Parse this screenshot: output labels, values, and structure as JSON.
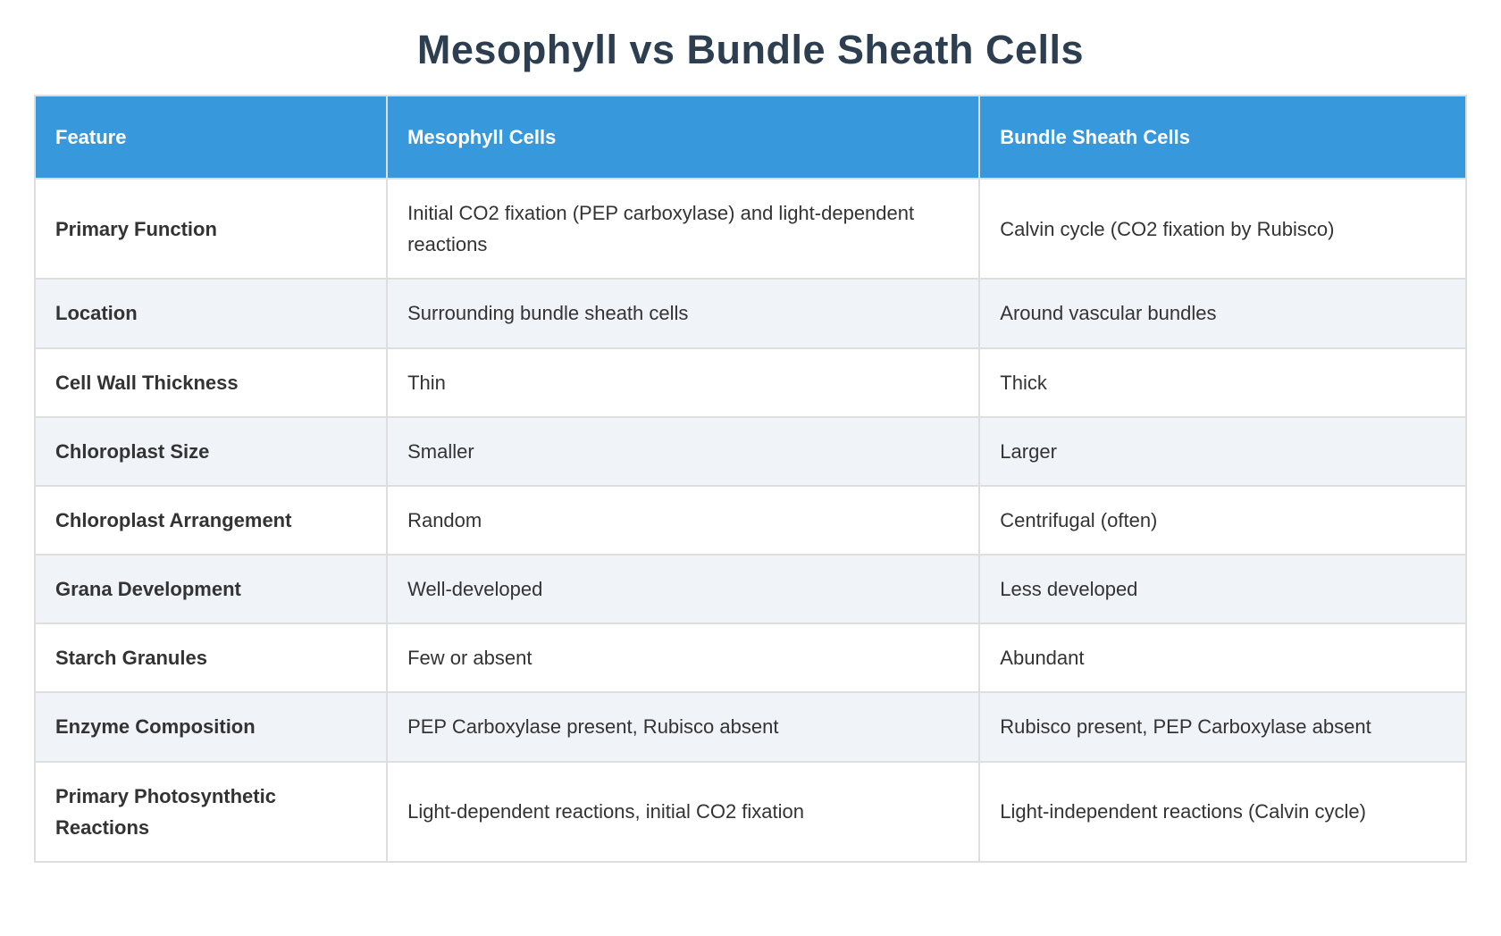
{
  "page": {
    "title": "Mesophyll vs Bundle Sheath Cells"
  },
  "colors": {
    "header_background": "#3798db",
    "header_text": "#ffffff",
    "alt_row_background": "#f0f3f8",
    "border": "#dedede",
    "title_text": "#2c3e50",
    "body_text": "#333333"
  },
  "table": {
    "headers": [
      "Feature",
      "Mesophyll Cells",
      "Bundle Sheath Cells"
    ],
    "rows": [
      {
        "feature": "Primary Function",
        "mesophyll": "Initial CO2 fixation (PEP carboxylase) and light-dependent reactions",
        "bundle_sheath": "Calvin cycle (CO2 fixation by Rubisco)"
      },
      {
        "feature": "Location",
        "mesophyll": "Surrounding bundle sheath cells",
        "bundle_sheath": "Around vascular bundles"
      },
      {
        "feature": "Cell Wall Thickness",
        "mesophyll": "Thin",
        "bundle_sheath": "Thick"
      },
      {
        "feature": "Chloroplast Size",
        "mesophyll": "Smaller",
        "bundle_sheath": "Larger"
      },
      {
        "feature": "Chloroplast Arrangement",
        "mesophyll": "Random",
        "bundle_sheath": "Centrifugal (often)"
      },
      {
        "feature": "Grana Development",
        "mesophyll": "Well-developed",
        "bundle_sheath": "Less developed"
      },
      {
        "feature": "Starch Granules",
        "mesophyll": "Few or absent",
        "bundle_sheath": "Abundant"
      },
      {
        "feature": "Enzyme Composition",
        "mesophyll": "PEP Carboxylase present, Rubisco absent",
        "bundle_sheath": "Rubisco present, PEP Carboxylase absent"
      },
      {
        "feature": "Primary Photosynthetic Reactions",
        "mesophyll": "Light-dependent reactions, initial CO2 fixation",
        "bundle_sheath": "Light-independent reactions (Calvin cycle)"
      }
    ]
  }
}
